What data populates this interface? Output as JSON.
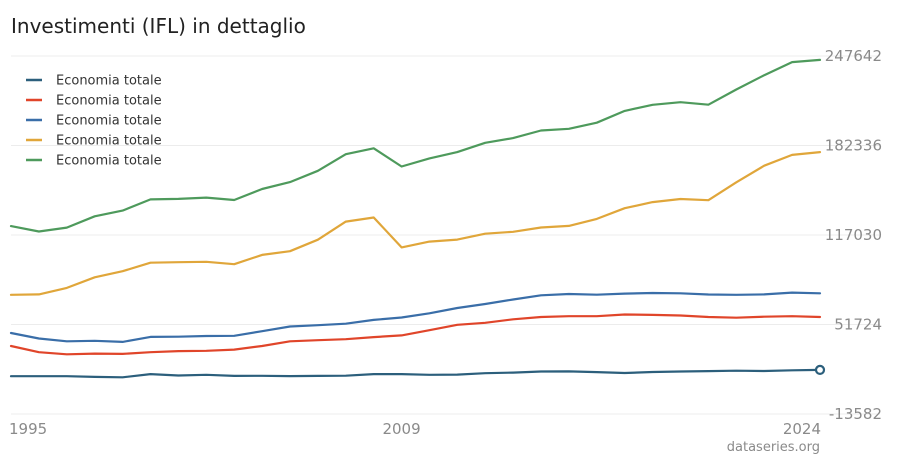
{
  "header": {
    "title": "Investimenti (IFL) in dettaglio"
  },
  "footer": {
    "credit": "dataseries.org"
  },
  "chart_data": {
    "type": "line",
    "title": "Investimenti (IFL) in dettaglio",
    "xlabel": "",
    "ylabel": "",
    "x": [
      1995,
      1996,
      1997,
      1998,
      1999,
      2000,
      2001,
      2002,
      2003,
      2004,
      2005,
      2006,
      2007,
      2008,
      2009,
      2010,
      2011,
      2012,
      2013,
      2014,
      2015,
      2016,
      2017,
      2018,
      2019,
      2020,
      2021,
      2022,
      2023,
      2024
    ],
    "x_ticks": [
      "1995",
      "2009",
      "2024"
    ],
    "y_ticks": [
      "247642",
      "182336",
      "117030",
      "51724",
      "-13582"
    ],
    "ylim": [
      -13582,
      247642
    ],
    "grid": true,
    "legend_position": "top-left",
    "series": [
      {
        "name": "Economia totale",
        "color": "#2c5f7c",
        "values": [
          14000,
          14000,
          14000,
          13500,
          13200,
          15500,
          14500,
          15000,
          14200,
          14300,
          14100,
          14200,
          14400,
          15500,
          15500,
          15000,
          15200,
          16200,
          16600,
          17400,
          17500,
          17000,
          16300,
          17100,
          17400,
          17700,
          18000,
          17800,
          18300,
          18600
        ]
      },
      {
        "name": "Economia totale",
        "color": "#e0452a",
        "values": [
          36000,
          31500,
          30000,
          30500,
          30300,
          31500,
          32300,
          32500,
          33400,
          36000,
          39500,
          40300,
          41000,
          42500,
          43800,
          47600,
          51500,
          53000,
          55500,
          57200,
          57800,
          57800,
          59000,
          58700,
          58300,
          57200,
          56700,
          57400,
          57800,
          57200
        ]
      },
      {
        "name": "Economia totale",
        "color": "#3a6ea8",
        "values": [
          45500,
          41500,
          39500,
          39800,
          39000,
          42700,
          42800,
          43300,
          43500,
          46800,
          50300,
          51200,
          52300,
          55100,
          56800,
          59900,
          63800,
          66700,
          70000,
          73000,
          74000,
          73500,
          74300,
          74700,
          74500,
          73600,
          73400,
          73700,
          75000,
          74500
        ]
      },
      {
        "name": "Economia totale",
        "color": "#e0a63a",
        "values": [
          73400,
          73700,
          78400,
          86200,
          90600,
          96800,
          97200,
          97500,
          95700,
          102500,
          105200,
          113600,
          126800,
          129800,
          108000,
          112200,
          113700,
          118000,
          119400,
          122500,
          123700,
          128800,
          136600,
          141000,
          143300,
          142400,
          155500,
          167600,
          175500,
          177500
        ]
      },
      {
        "name": "Economia totale",
        "color": "#4e9a5c",
        "values": [
          123500,
          119600,
          122400,
          130700,
          134800,
          143000,
          143400,
          144300,
          142600,
          150600,
          155600,
          163900,
          176000,
          180300,
          167000,
          172900,
          177500,
          184300,
          187700,
          193300,
          194500,
          199000,
          207600,
          212000,
          213900,
          212100,
          223200,
          233600,
          243200,
          244800
        ]
      }
    ]
  }
}
